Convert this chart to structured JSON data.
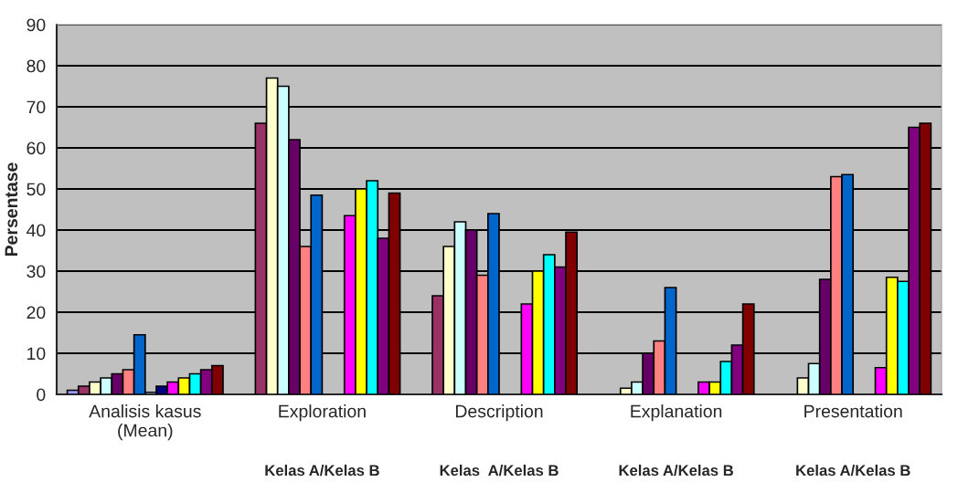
{
  "chart_data": {
    "type": "bar",
    "ylabel": "Persentase",
    "categories": [
      "Analisis kasus\n(Mean)",
      "Exploration",
      "Description",
      "Explanation",
      "Presentation"
    ],
    "series": [
      {
        "color": "#9999ff",
        "values": [
          1,
          null,
          null,
          null,
          null
        ]
      },
      {
        "color": "#993366",
        "values": [
          2,
          66,
          24,
          null,
          null
        ]
      },
      {
        "color": "#ffffcc",
        "values": [
          3,
          77,
          36,
          1.5,
          4
        ]
      },
      {
        "color": "#ccffff",
        "values": [
          4,
          75,
          42,
          3,
          7.5
        ]
      },
      {
        "color": "#660066",
        "values": [
          5,
          62,
          40,
          10,
          28
        ]
      },
      {
        "color": "#ff8080",
        "values": [
          6,
          36,
          29,
          13,
          53
        ]
      },
      {
        "color": "#0066cc",
        "values": [
          14.5,
          48.5,
          44,
          26,
          53.5
        ]
      },
      {
        "color": "#ccccff",
        "values": [
          0.5,
          null,
          null,
          null,
          null
        ]
      },
      {
        "color": "#000080",
        "values": [
          2,
          null,
          null,
          null,
          null
        ]
      },
      {
        "color": "#ff00ff",
        "values": [
          3,
          43.5,
          22,
          3,
          6.5
        ]
      },
      {
        "color": "#ffff00",
        "values": [
          4,
          50,
          30,
          3,
          28.5
        ]
      },
      {
        "color": "#00ffff",
        "values": [
          5,
          52,
          34,
          8,
          27.5
        ]
      },
      {
        "color": "#800080",
        "values": [
          6,
          38,
          31,
          12,
          65
        ]
      },
      {
        "color": "#800000",
        "values": [
          7,
          49,
          39.5,
          22,
          66
        ]
      }
    ],
    "ylim": [
      0,
      90
    ],
    "yticks": [
      0,
      10,
      20,
      30,
      40,
      50,
      60,
      70,
      80,
      90
    ],
    "grid": "y",
    "annotations": [
      "Kelas A/Kelas B",
      "Kelas  A/Kelas B",
      "Kelas A/Kelas B",
      "Kelas A/Kelas B"
    ]
  }
}
